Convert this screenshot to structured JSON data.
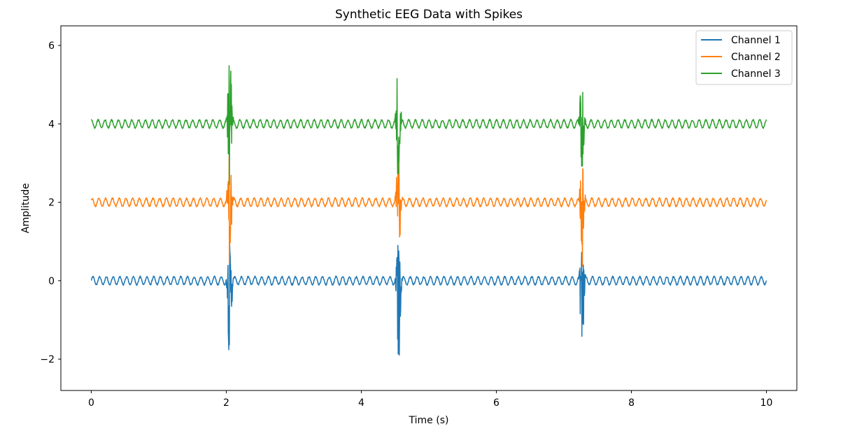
{
  "chart_data": {
    "type": "line",
    "title": "Synthetic EEG Data with Spikes",
    "xlabel": "Time (s)",
    "ylabel": "Amplitude",
    "xlim": [
      -0.45,
      10.45
    ],
    "ylim": [
      -2.8,
      6.5
    ],
    "xticks": [
      0,
      2,
      4,
      6,
      8,
      10
    ],
    "xtick_labels": [
      "0",
      "2",
      "4",
      "6",
      "8",
      "10"
    ],
    "yticks": [
      -2,
      0,
      2,
      4,
      6
    ],
    "ytick_labels": [
      "−2",
      "0",
      "2",
      "4",
      "6"
    ],
    "grid": false,
    "legend_position": "top-right",
    "baseline_wave": {
      "frequency_hz": 10,
      "amplitude": 0.1,
      "duration_s": 10
    },
    "spike_times_s": [
      2.05,
      4.55,
      7.27
    ],
    "series": [
      {
        "name": "Channel 1",
        "color": "#1f77b4",
        "offset": 0,
        "spike_max": 1.0,
        "spike_min": -2.3
      },
      {
        "name": "Channel 2",
        "color": "#ff7f0e",
        "offset": 2,
        "spike_max": 3.5,
        "spike_min": 0.4
      },
      {
        "name": "Channel 3",
        "color": "#2ca02c",
        "offset": 4,
        "spike_max": 6.1,
        "spike_min": 2.5
      }
    ]
  }
}
